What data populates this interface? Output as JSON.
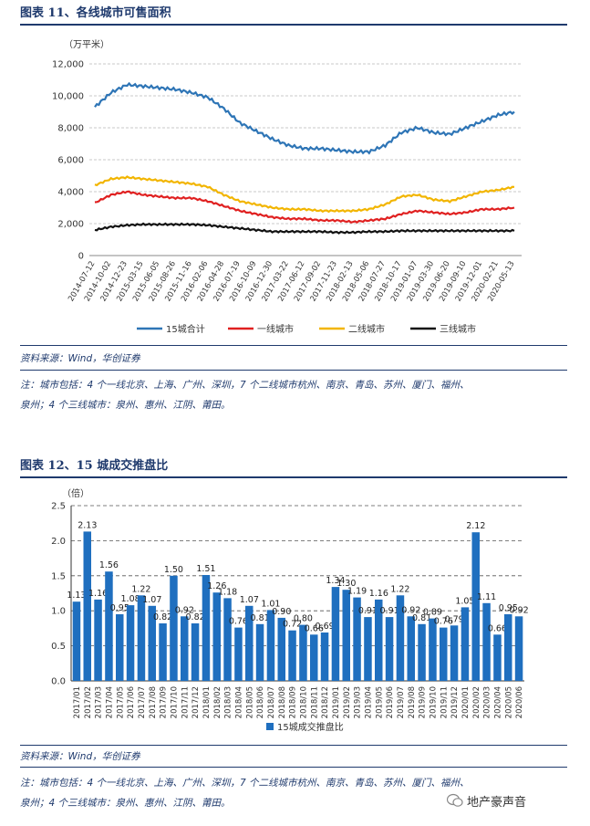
{
  "figure1": {
    "title": "图表 11、各线城市可售面积",
    "source": "资料来源：Wind，华创证券",
    "note_line1": "注：城市包括：4 个一线北京、上海、广州、深圳，7 个二线城市杭州、南京、青岛、苏州、厦门、福州、",
    "note_line2": "泉州；4 个三线城市：泉州、惠州、江阴、莆田。"
  },
  "figure2": {
    "title": "图表 12、15 城成交推盘比",
    "source": "资料来源：Wind，华创证券",
    "note_line1": "注：城市包括：4 个一线北京、上海、广州、深圳，7 个二线城市杭州、南京、青岛、苏州、厦门、福州、",
    "note_line2": "泉州；4 个三线城市：泉州、惠州、江阴、莆田。"
  },
  "watermark": "地产豪声音",
  "chart_data": [
    {
      "type": "line",
      "ylabel": "（万平米）",
      "ylim": [
        0,
        12000
      ],
      "yticks": [
        "0",
        "2,000",
        "4,000",
        "6,000",
        "8,000",
        "10,000",
        "12,000"
      ],
      "xticks": [
        "2014-07-12",
        "2014-10-02",
        "2014-12-23",
        "2015-03-15",
        "2015-06-05",
        "2015-08-26",
        "2015-11-16",
        "2016-02-06",
        "2016-04-28",
        "2016-07-19",
        "2016-10-09",
        "2016-12-30",
        "2017-03-22",
        "2017-06-12",
        "2017-09-02",
        "2017-11-23",
        "2018-02-13",
        "2018-05-06",
        "2018-07-27",
        "2018-10-17",
        "2019-01-07",
        "2019-03-30",
        "2019-06-20",
        "2019-09-10",
        "2019-12-01",
        "2020-02-21",
        "2020-05-13"
      ],
      "legend_position": "bottom",
      "grid": true,
      "series": [
        {
          "name": "15城合计",
          "color": "#2e75b6",
          "values": [
            9300,
            10200,
            10700,
            10600,
            10500,
            10400,
            10200,
            9900,
            9200,
            8300,
            7800,
            7300,
            6900,
            6700,
            6700,
            6600,
            6500,
            6500,
            6900,
            7700,
            8000,
            7700,
            7600,
            8000,
            8400,
            8800,
            9000
          ]
        },
        {
          "name": "一线城市",
          "color": "#e02020",
          "values": [
            3300,
            3800,
            4000,
            3800,
            3700,
            3600,
            3600,
            3400,
            3100,
            2800,
            2600,
            2400,
            2300,
            2300,
            2200,
            2200,
            2100,
            2200,
            2300,
            2600,
            2800,
            2700,
            2600,
            2700,
            2900,
            2900,
            3000
          ]
        },
        {
          "name": "二线城市",
          "color": "#f2b500",
          "values": [
            4400,
            4800,
            4900,
            4800,
            4700,
            4600,
            4500,
            4300,
            3800,
            3400,
            3200,
            3000,
            2900,
            2900,
            2800,
            2800,
            2800,
            2900,
            3200,
            3700,
            3800,
            3500,
            3400,
            3700,
            4000,
            4100,
            4300
          ]
        },
        {
          "name": "三线城市",
          "color": "#111111",
          "values": [
            1600,
            1800,
            1900,
            1950,
            1950,
            1950,
            1950,
            1900,
            1800,
            1700,
            1600,
            1500,
            1500,
            1500,
            1500,
            1450,
            1450,
            1500,
            1500,
            1550,
            1550,
            1550,
            1550,
            1550,
            1550,
            1550,
            1550
          ]
        }
      ]
    },
    {
      "type": "bar",
      "ylabel": "（倍）",
      "ylim": [
        0,
        2.5
      ],
      "yticks": [
        "0.0",
        "0.5",
        "1.0",
        "1.5",
        "2.0",
        "2.5"
      ],
      "categories": [
        "2017/01",
        "2017/02",
        "2017/03",
        "2017/04",
        "2017/05",
        "2017/06",
        "2017/07",
        "2017/08",
        "2017/09",
        "2017/10",
        "2017/11",
        "2017/12",
        "2018/01",
        "2018/02",
        "2018/03",
        "2018/04",
        "2018/05",
        "2018/06",
        "2018/07",
        "2018/08",
        "2018/09",
        "2018/10",
        "2018/11",
        "2018/12",
        "2019/01",
        "2019/02",
        "2019/03",
        "2019/04",
        "2019/05",
        "2019/06",
        "2019/07",
        "2019/08",
        "2019/09",
        "2019/10",
        "2019/11",
        "2019/12",
        "2020/01",
        "2020/02",
        "2020/03",
        "2020/04",
        "2020/05",
        "2020/06"
      ],
      "series": [
        {
          "name": "15城成交推盘比",
          "color": "#1f6fbf",
          "values": [
            1.13,
            2.13,
            1.16,
            1.56,
            0.95,
            1.08,
            1.22,
            1.07,
            0.82,
            1.5,
            0.92,
            0.82,
            1.51,
            1.26,
            1.18,
            0.76,
            1.07,
            0.81,
            1.01,
            0.9,
            0.72,
            0.8,
            0.66,
            0.69,
            1.34,
            1.3,
            1.19,
            0.91,
            1.16,
            0.91,
            1.22,
            0.92,
            0.81,
            0.89,
            0.76,
            0.79,
            1.05,
            2.12,
            1.11,
            0.66,
            0.95,
            0.92
          ]
        }
      ],
      "data_labels": [
        "1.13",
        "2.13",
        "1.16",
        "1.56",
        "0.95",
        "1.08",
        "1.22",
        "1.07",
        "0.82",
        "1.50",
        "0.92",
        "0.82",
        "1.51",
        "1.26",
        "1.18",
        "0.76",
        "1.07",
        "0.81",
        "1.01",
        "0.90",
        "0.72",
        "0.80",
        "0.66",
        "0.69",
        "1.34",
        "1.30",
        "1.19",
        "0.91",
        "1.16",
        "0.91",
        "1.22",
        "0.92",
        "0.81",
        "0.89",
        "0.76",
        "0.79",
        "1.05",
        "2.12",
        "1.11",
        "0.66",
        "0.95",
        "0.92"
      ],
      "legend_position": "bottom",
      "grid": true
    }
  ]
}
